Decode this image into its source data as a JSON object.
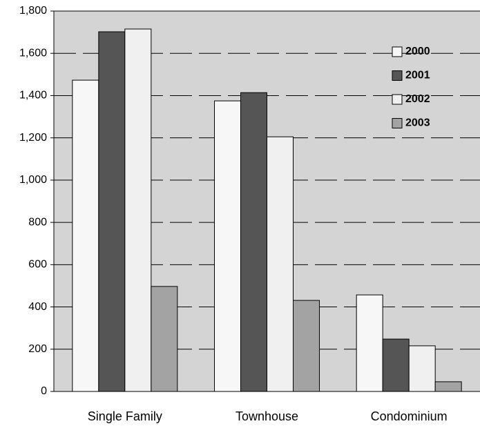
{
  "chart_data": {
    "type": "bar",
    "categories": [
      "Single Family",
      "Townhouse",
      "Condominium"
    ],
    "series": [
      {
        "name": "2000",
        "color": "#f7f7f7",
        "values": [
          1473,
          1375,
          457
        ]
      },
      {
        "name": "2001",
        "color": "#555555",
        "values": [
          1702,
          1414,
          248
        ]
      },
      {
        "name": "2002",
        "color": "#f0f0f0",
        "values": [
          1715,
          1205,
          216
        ]
      },
      {
        "name": "2003",
        "color": "#a3a3a3",
        "values": [
          497,
          431,
          46
        ]
      }
    ],
    "ylim": [
      0,
      1800
    ],
    "yticks": [
      0,
      200,
      400,
      600,
      800,
      {
        "value": 1000,
        "label": "1,000"
      },
      {
        "value": 1200,
        "label": "1,200"
      },
      {
        "value": 1400,
        "label": "1,400"
      },
      {
        "value": 1600,
        "label": "1,600"
      },
      {
        "value": 1800,
        "label": "1,800"
      }
    ],
    "grid": true,
    "legend": "top-right"
  }
}
